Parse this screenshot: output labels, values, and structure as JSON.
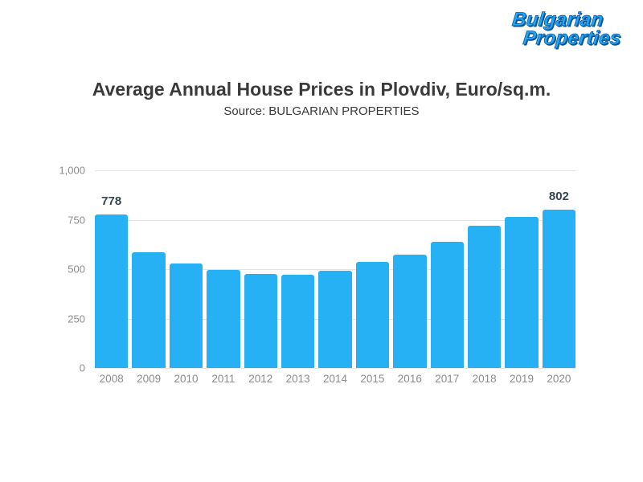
{
  "logo": {
    "line1": "Bulgarian",
    "line2": "Properties"
  },
  "header": {
    "title": "Average Annual House Prices in Plovdiv, Euro/sq.m.",
    "subtitle": "Source: BULGARIAN PROPERTIES"
  },
  "colors": {
    "bar": "#25b1f3",
    "logo_blue": "#1fa9f3",
    "grid": "#e4e4e4",
    "axis_text": "#8c8c8c",
    "value_label_text": "#37474f"
  },
  "chart_data": {
    "type": "bar",
    "title": "Average Annual House Prices in Plovdiv, Euro/sq.m.",
    "subtitle": "Source: BULGARIAN PROPERTIES",
    "xlabel": "",
    "ylabel": "",
    "categories": [
      "2008",
      "2009",
      "2010",
      "2011",
      "2012",
      "2013",
      "2014",
      "2015",
      "2016",
      "2017",
      "2018",
      "2019",
      "2020"
    ],
    "values": [
      778,
      585,
      530,
      497,
      475,
      472,
      493,
      535,
      575,
      638,
      720,
      765,
      802
    ],
    "bar_labels": [
      "778",
      "",
      "",
      "",
      "",
      "",
      "",
      "",
      "",
      "",
      "",
      "",
      "802"
    ],
    "ylim": [
      0,
      1000
    ],
    "ytick_values": [
      0,
      250,
      500,
      750,
      1000
    ],
    "ytick_labels": [
      "0",
      "250",
      "500",
      "750",
      "1,000"
    ],
    "grid": true,
    "legend": "none"
  }
}
